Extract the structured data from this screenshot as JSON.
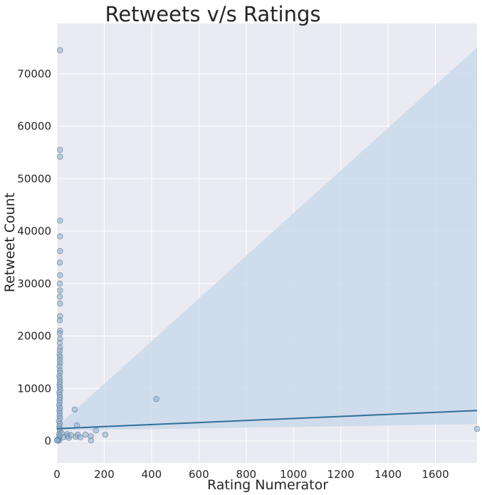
{
  "chart_data": {
    "type": "scatter",
    "title": "Retweets v/s Ratings",
    "xlabel": "Rating Numerator",
    "ylabel": "Retweet Count",
    "xlim": [
      0,
      1776
    ],
    "ylim": [
      -4200,
      79600
    ],
    "x_ticks": [
      0,
      200,
      400,
      600,
      800,
      1000,
      1200,
      1400,
      1600
    ],
    "y_ticks": [
      0,
      10000,
      20000,
      30000,
      40000,
      50000,
      60000,
      70000
    ],
    "grid": true,
    "background_color": "#eaeaf2",
    "point_color": "#8faecb",
    "point_edge_color": "#5d7f9c",
    "line_color": "#2f6f9b",
    "band_color": "#c6d7e8",
    "points": [
      {
        "x": 13,
        "y": 74500
      },
      {
        "x": 13,
        "y": 55500
      },
      {
        "x": 13,
        "y": 54200
      },
      {
        "x": 13,
        "y": 42000
      },
      {
        "x": 13,
        "y": 39000
      },
      {
        "x": 13,
        "y": 36200
      },
      {
        "x": 12,
        "y": 34000
      },
      {
        "x": 13,
        "y": 31600
      },
      {
        "x": 12,
        "y": 30000
      },
      {
        "x": 13,
        "y": 28700
      },
      {
        "x": 12,
        "y": 27500
      },
      {
        "x": 13,
        "y": 26200
      },
      {
        "x": 13,
        "y": 23800
      },
      {
        "x": 12,
        "y": 23000
      },
      {
        "x": 13,
        "y": 21000
      },
      {
        "x": 12,
        "y": 20500
      },
      {
        "x": 13,
        "y": 19500
      },
      {
        "x": 12,
        "y": 18700
      },
      {
        "x": 13,
        "y": 17800
      },
      {
        "x": 12,
        "y": 17200
      },
      {
        "x": 11,
        "y": 16500
      },
      {
        "x": 13,
        "y": 16000
      },
      {
        "x": 12,
        "y": 15400
      },
      {
        "x": 13,
        "y": 14800
      },
      {
        "x": 11,
        "y": 14200
      },
      {
        "x": 12,
        "y": 13500
      },
      {
        "x": 13,
        "y": 13000
      },
      {
        "x": 10,
        "y": 12400
      },
      {
        "x": 12,
        "y": 11900
      },
      {
        "x": 13,
        "y": 11300
      },
      {
        "x": 11,
        "y": 10800
      },
      {
        "x": 12,
        "y": 10300
      },
      {
        "x": 14,
        "y": 9800
      },
      {
        "x": 10,
        "y": 9300
      },
      {
        "x": 12,
        "y": 8800
      },
      {
        "x": 13,
        "y": 8300
      },
      {
        "x": 11,
        "y": 7800
      },
      {
        "x": 12,
        "y": 7300
      },
      {
        "x": 9,
        "y": 6800
      },
      {
        "x": 13,
        "y": 6300
      },
      {
        "x": 10,
        "y": 5800
      },
      {
        "x": 12,
        "y": 5300
      },
      {
        "x": 11,
        "y": 4800
      },
      {
        "x": 13,
        "y": 4300
      },
      {
        "x": 8,
        "y": 3800
      },
      {
        "x": 12,
        "y": 3300
      },
      {
        "x": 10,
        "y": 2800
      },
      {
        "x": 11,
        "y": 2300
      },
      {
        "x": 13,
        "y": 1800
      },
      {
        "x": 9,
        "y": 1300
      },
      {
        "x": 12,
        "y": 800
      },
      {
        "x": 7,
        "y": 400
      },
      {
        "x": 10,
        "y": 150
      },
      {
        "x": 5,
        "y": 50
      },
      {
        "x": 2,
        "y": 300
      },
      {
        "x": 0,
        "y": 100
      },
      {
        "x": 14,
        "y": 1000
      },
      {
        "x": 20,
        "y": 1500
      },
      {
        "x": 27,
        "y": 700
      },
      {
        "x": 44,
        "y": 1300
      },
      {
        "x": 45,
        "y": 900
      },
      {
        "x": 50,
        "y": 600
      },
      {
        "x": 60,
        "y": 1100
      },
      {
        "x": 75,
        "y": 6000
      },
      {
        "x": 80,
        "y": 800
      },
      {
        "x": 84,
        "y": 3000
      },
      {
        "x": 88,
        "y": 1200
      },
      {
        "x": 99,
        "y": 700
      },
      {
        "x": 121,
        "y": 1200
      },
      {
        "x": 143,
        "y": 900
      },
      {
        "x": 144,
        "y": 100
      },
      {
        "x": 165,
        "y": 2000
      },
      {
        "x": 204,
        "y": 1200
      },
      {
        "x": 420,
        "y": 8000
      },
      {
        "x": 1776,
        "y": 2300
      }
    ],
    "regression": {
      "x": [
        0,
        1776
      ],
      "y": [
        2350,
        5800
      ],
      "ci_lower": [
        2000,
        3200
      ],
      "ci_upper": [
        2750,
        75000
      ]
    }
  }
}
